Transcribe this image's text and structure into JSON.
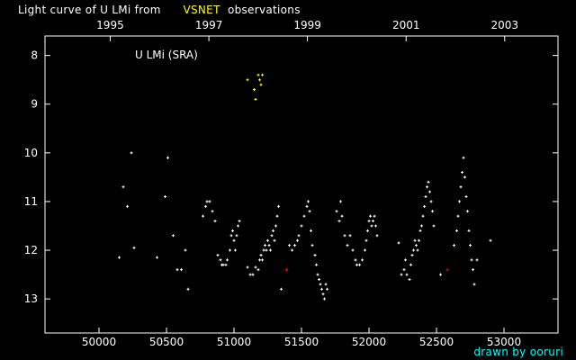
{
  "header": {
    "title_prefix": "Light curve of U LMi from",
    "title_source": "VSNET",
    "title_suffix": "observations"
  },
  "footer": {
    "credit": "drawn by ooruri"
  },
  "chart_data": {
    "type": "scatter",
    "annotation": "U LMi (SRA)",
    "xlim": [
      49600,
      53400
    ],
    "ylim": [
      7.6,
      13.7
    ],
    "y_inverted": true,
    "x_ticks": [
      {
        "value": 50000,
        "label": "50000"
      },
      {
        "value": 50500,
        "label": "50500"
      },
      {
        "value": 51000,
        "label": "51000"
      },
      {
        "value": 51500,
        "label": "51500"
      },
      {
        "value": 52000,
        "label": "52000"
      },
      {
        "value": 52500,
        "label": "52500"
      },
      {
        "value": 53000,
        "label": "53000"
      }
    ],
    "top_axis_ticks": [
      {
        "value": 50083,
        "label": "1995"
      },
      {
        "value": 50814,
        "label": "1997"
      },
      {
        "value": 51544,
        "label": "1999"
      },
      {
        "value": 52275,
        "label": "2001"
      },
      {
        "value": 53005,
        "label": "2003"
      }
    ],
    "y_ticks": [
      {
        "value": 8,
        "label": "8"
      },
      {
        "value": 9,
        "label": "9"
      },
      {
        "value": 10,
        "label": "10"
      },
      {
        "value": 11,
        "label": "11"
      },
      {
        "value": 12,
        "label": "12"
      },
      {
        "value": 13,
        "label": "13"
      }
    ],
    "colors": {
      "visual": "#ffffff",
      "yellow": "#ffff00",
      "red": "#ff0000",
      "axes": "#ffffff"
    },
    "series": [
      {
        "color": "#ffffff",
        "points": [
          [
            50150,
            12.15
          ],
          [
            50180,
            10.7
          ],
          [
            50210,
            11.1
          ],
          [
            50240,
            10.0
          ],
          [
            50260,
            11.95
          ],
          [
            50430,
            12.15
          ],
          [
            50490,
            10.9
          ],
          [
            50510,
            10.1
          ],
          [
            50550,
            11.7
          ],
          [
            50580,
            12.4
          ],
          [
            50610,
            12.4
          ],
          [
            50640,
            12.0
          ],
          [
            50660,
            12.8
          ],
          [
            50770,
            11.3
          ],
          [
            50790,
            11.1
          ],
          [
            50800,
            11.0
          ],
          [
            50820,
            11.0
          ],
          [
            50840,
            11.2
          ],
          [
            50860,
            11.4
          ],
          [
            50880,
            12.1
          ],
          [
            50900,
            12.2
          ],
          [
            50910,
            12.3
          ],
          [
            50920,
            12.3
          ],
          [
            50940,
            12.3
          ],
          [
            50950,
            12.2
          ],
          [
            50970,
            12.0
          ],
          [
            50980,
            11.7
          ],
          [
            50990,
            11.6
          ],
          [
            51000,
            11.8
          ],
          [
            51010,
            12.0
          ],
          [
            51020,
            11.7
          ],
          [
            51030,
            11.5
          ],
          [
            51040,
            11.4
          ],
          [
            51100,
            12.35
          ],
          [
            51120,
            12.5
          ],
          [
            51140,
            12.5
          ],
          [
            51160,
            12.35
          ],
          [
            51180,
            12.4
          ],
          [
            51190,
            12.2
          ],
          [
            51200,
            12.1
          ],
          [
            51210,
            12.2
          ],
          [
            51220,
            12.0
          ],
          [
            51230,
            11.9
          ],
          [
            51240,
            12.0
          ],
          [
            51250,
            11.8
          ],
          [
            51260,
            11.9
          ],
          [
            51270,
            12.0
          ],
          [
            51280,
            11.7
          ],
          [
            51290,
            11.6
          ],
          [
            51300,
            11.8
          ],
          [
            51310,
            11.5
          ],
          [
            51320,
            11.3
          ],
          [
            51330,
            11.1
          ],
          [
            51350,
            12.8
          ],
          [
            51410,
            11.9
          ],
          [
            51430,
            12.0
          ],
          [
            51450,
            11.9
          ],
          [
            51470,
            11.8
          ],
          [
            51480,
            11.7
          ],
          [
            51500,
            11.5
          ],
          [
            51520,
            11.3
          ],
          [
            51540,
            11.1
          ],
          [
            51550,
            11.0
          ],
          [
            51560,
            11.2
          ],
          [
            51570,
            11.6
          ],
          [
            51580,
            11.9
          ],
          [
            51600,
            12.1
          ],
          [
            51610,
            12.3
          ],
          [
            51620,
            12.5
          ],
          [
            51630,
            12.6
          ],
          [
            51640,
            12.7
          ],
          [
            51650,
            12.8
          ],
          [
            51660,
            12.9
          ],
          [
            51670,
            13.0
          ],
          [
            51680,
            12.7
          ],
          [
            51690,
            12.8
          ],
          [
            51760,
            11.2
          ],
          [
            51780,
            11.4
          ],
          [
            51790,
            11.0
          ],
          [
            51800,
            11.3
          ],
          [
            51820,
            11.7
          ],
          [
            51840,
            11.9
          ],
          [
            51860,
            11.7
          ],
          [
            51880,
            12.0
          ],
          [
            51900,
            12.2
          ],
          [
            51910,
            12.3
          ],
          [
            51930,
            12.3
          ],
          [
            51950,
            12.2
          ],
          [
            51970,
            12.0
          ],
          [
            51980,
            11.8
          ],
          [
            51990,
            11.6
          ],
          [
            52000,
            11.4
          ],
          [
            52010,
            11.3
          ],
          [
            52020,
            11.5
          ],
          [
            52030,
            11.4
          ],
          [
            52040,
            11.3
          ],
          [
            52050,
            11.5
          ],
          [
            52060,
            11.7
          ],
          [
            52220,
            11.85
          ],
          [
            52240,
            12.5
          ],
          [
            52260,
            12.4
          ],
          [
            52270,
            12.2
          ],
          [
            52280,
            12.5
          ],
          [
            52300,
            12.6
          ],
          [
            52310,
            12.3
          ],
          [
            52320,
            12.1
          ],
          [
            52330,
            12.0
          ],
          [
            52340,
            11.8
          ],
          [
            52350,
            11.9
          ],
          [
            52360,
            12.0
          ],
          [
            52370,
            11.8
          ],
          [
            52380,
            11.6
          ],
          [
            52390,
            11.5
          ],
          [
            52400,
            11.3
          ],
          [
            52410,
            11.1
          ],
          [
            52420,
            10.9
          ],
          [
            52430,
            10.7
          ],
          [
            52440,
            10.6
          ],
          [
            52450,
            10.8
          ],
          [
            52460,
            11.0
          ],
          [
            52470,
            11.2
          ],
          [
            52480,
            11.5
          ],
          [
            52530,
            12.5
          ],
          [
            52630,
            11.9
          ],
          [
            52650,
            11.6
          ],
          [
            52660,
            11.3
          ],
          [
            52670,
            11.0
          ],
          [
            52680,
            10.7
          ],
          [
            52690,
            10.4
          ],
          [
            52700,
            10.1
          ],
          [
            52710,
            10.5
          ],
          [
            52720,
            10.9
          ],
          [
            52730,
            11.2
          ],
          [
            52740,
            11.6
          ],
          [
            52750,
            11.9
          ],
          [
            52760,
            12.2
          ],
          [
            52770,
            12.4
          ],
          [
            52780,
            12.7
          ],
          [
            52800,
            12.2
          ],
          [
            52900,
            11.8
          ]
        ]
      },
      {
        "color": "#ffff00",
        "points": [
          [
            51100,
            8.5
          ],
          [
            51150,
            8.7
          ],
          [
            51160,
            8.9
          ],
          [
            51180,
            8.4
          ],
          [
            51190,
            8.5
          ],
          [
            51200,
            8.6
          ],
          [
            51210,
            8.4
          ]
        ]
      },
      {
        "color": "#ff0000",
        "points": [
          [
            51390,
            12.4
          ],
          [
            52580,
            12.4
          ]
        ]
      }
    ]
  }
}
